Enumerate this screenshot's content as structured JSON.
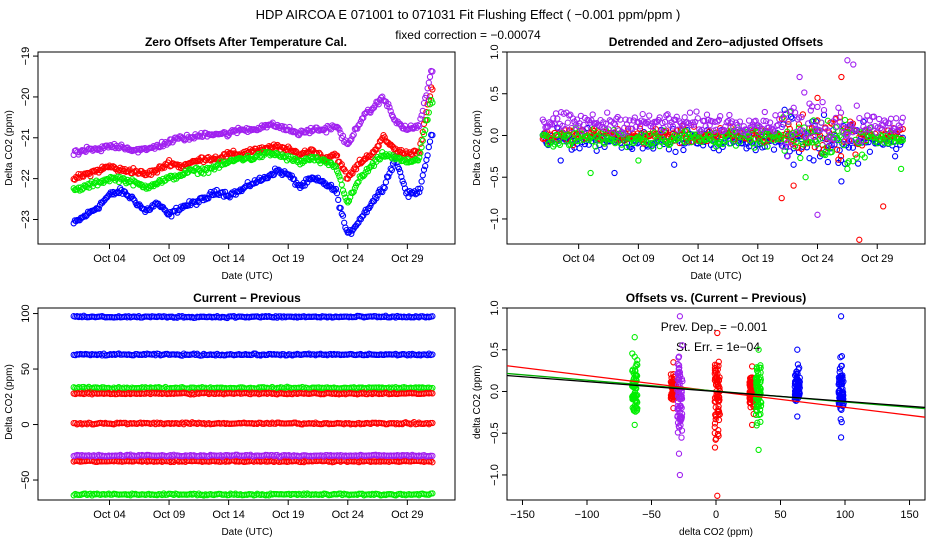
{
  "figure": {
    "title": "HDP   AIRCOA E   071001 to 071031   Fit Flushing Effect ( −0.001 ppm/ppm )",
    "subtitle": "fixed correction = −0.00074"
  },
  "colors": {
    "blue": "#0000ff",
    "red": "#ff0000",
    "green": "#00ee00",
    "purple": "#a020f0",
    "black": "#000000"
  },
  "chart_data": [
    {
      "id": "p1",
      "type": "scatter",
      "title": "Zero Offsets After Temperature Cal.",
      "xlabel": "Date (UTC)",
      "ylabel": "Delta CO2 (ppm)",
      "xlim": [
        -2,
        33
      ],
      "ylim": [
        -23.6,
        -18.9
      ],
      "x_ticks": [
        4,
        9,
        14,
        19,
        24,
        29
      ],
      "x_tick_labels": [
        "Oct 04",
        "Oct 09",
        "Oct 14",
        "Oct 19",
        "Oct 24",
        "Oct 29"
      ],
      "y_ticks": [
        -23,
        -22,
        -21,
        -20,
        -19
      ],
      "y_tick_labels": [
        "−23",
        "−22",
        "−21",
        "−20",
        "−19"
      ],
      "x_data_range": [
        1,
        31.2
      ],
      "series": [
        {
          "name": "blue",
          "color": "#0000ff",
          "x": [
            1,
            2,
            3,
            4,
            5,
            6,
            7,
            8,
            9,
            10,
            11,
            12,
            13,
            14,
            15,
            16,
            17,
            18,
            19,
            20,
            21,
            22,
            23,
            24,
            25,
            26,
            27,
            28,
            29,
            30,
            31
          ],
          "y": [
            -23.1,
            -22.9,
            -22.7,
            -22.4,
            -22.3,
            -22.5,
            -22.8,
            -22.6,
            -22.9,
            -22.7,
            -22.6,
            -22.5,
            -22.3,
            -22.4,
            -22.3,
            -22.1,
            -22.0,
            -21.8,
            -21.9,
            -22.2,
            -22.0,
            -22.1,
            -22.3,
            -23.4,
            -23.0,
            -22.6,
            -22.2,
            -21.5,
            -22.4,
            -22.3,
            -21.0
          ]
        },
        {
          "name": "red",
          "color": "#ff0000",
          "x": [
            1,
            2,
            3,
            4,
            5,
            6,
            7,
            8,
            9,
            10,
            11,
            12,
            13,
            14,
            15,
            16,
            17,
            18,
            19,
            20,
            21,
            22,
            23,
            24,
            25,
            26,
            27,
            28,
            29,
            30,
            31
          ],
          "y": [
            -22.0,
            -21.9,
            -21.8,
            -21.7,
            -21.8,
            -21.8,
            -21.9,
            -21.8,
            -21.6,
            -21.7,
            -21.6,
            -21.5,
            -21.5,
            -21.4,
            -21.4,
            -21.3,
            -21.3,
            -21.2,
            -21.3,
            -21.4,
            -21.3,
            -21.5,
            -21.4,
            -22.0,
            -21.6,
            -21.4,
            -21.0,
            -21.3,
            -21.4,
            -21.3,
            -19.8
          ]
        },
        {
          "name": "green",
          "color": "#00ee00",
          "x": [
            1,
            2,
            3,
            4,
            5,
            6,
            7,
            8,
            9,
            10,
            11,
            12,
            13,
            14,
            15,
            16,
            17,
            18,
            19,
            20,
            21,
            22,
            23,
            24,
            25,
            26,
            27,
            28,
            29,
            30,
            31
          ],
          "y": [
            -22.3,
            -22.2,
            -22.1,
            -22.0,
            -22.0,
            -22.1,
            -22.2,
            -22.1,
            -22.0,
            -21.9,
            -21.8,
            -21.8,
            -21.7,
            -21.6,
            -21.5,
            -21.5,
            -21.4,
            -21.4,
            -21.5,
            -21.6,
            -21.5,
            -21.6,
            -21.7,
            -22.6,
            -22.0,
            -21.7,
            -21.4,
            -21.5,
            -21.6,
            -21.5,
            -20.1
          ]
        },
        {
          "name": "purple",
          "color": "#a020f0",
          "x": [
            1,
            2,
            3,
            4,
            5,
            6,
            7,
            8,
            9,
            10,
            11,
            12,
            13,
            14,
            15,
            16,
            17,
            18,
            19,
            20,
            21,
            22,
            23,
            24,
            25,
            26,
            27,
            28,
            29,
            30,
            31
          ],
          "y": [
            -21.4,
            -21.3,
            -21.3,
            -21.2,
            -21.2,
            -21.3,
            -21.3,
            -21.2,
            -21.1,
            -21.0,
            -21.0,
            -20.9,
            -20.9,
            -20.9,
            -20.8,
            -20.8,
            -20.7,
            -20.7,
            -20.8,
            -20.9,
            -20.8,
            -20.8,
            -20.7,
            -21.2,
            -20.6,
            -20.3,
            -20.0,
            -20.6,
            -20.8,
            -20.7,
            -19.4
          ]
        }
      ]
    },
    {
      "id": "p2",
      "type": "scatter",
      "title": "Detrended and Zero−adjusted Offsets",
      "xlabel": "Date (UTC)",
      "ylabel": "Delta CO2 (ppm)",
      "xlim": [
        -2,
        33
      ],
      "ylim": [
        -1.3,
        1.0
      ],
      "x_ticks": [
        4,
        9,
        14,
        19,
        24,
        29
      ],
      "x_tick_labels": [
        "Oct 04",
        "Oct 09",
        "Oct 14",
        "Oct 19",
        "Oct 24",
        "Oct 29"
      ],
      "y_ticks": [
        -1.0,
        -0.5,
        0.0,
        0.5,
        1.0
      ],
      "y_tick_labels": [
        "−1.0",
        "−0.5",
        "0.0",
        "0.5",
        "1.0"
      ],
      "x_data_range": [
        1,
        31.2
      ],
      "series": [
        {
          "name": "blue",
          "color": "#0000ff",
          "center": -0.05,
          "spread": 0.1,
          "outliers": [
            [
              2.5,
              -0.3
            ],
            [
              7,
              -0.45
            ],
            [
              12,
              -0.35
            ],
            [
              22,
              -0.35
            ],
            [
              26,
              -0.55
            ],
            [
              30.5,
              -0.25
            ]
          ]
        },
        {
          "name": "red",
          "color": "#ff0000",
          "center": 0.0,
          "spread": 0.08,
          "outliers": [
            [
              21,
              -0.75
            ],
            [
              22,
              -0.6
            ],
            [
              26,
              0.7
            ],
            [
              27.5,
              -1.25
            ],
            [
              29.5,
              -0.85
            ],
            [
              24,
              0.45
            ]
          ]
        },
        {
          "name": "green",
          "color": "#00ee00",
          "center": -0.03,
          "spread": 0.09,
          "outliers": [
            [
              5,
              -0.45
            ],
            [
              9,
              -0.3
            ],
            [
              23,
              -0.5
            ],
            [
              26.5,
              -0.4
            ],
            [
              31,
              -0.4
            ]
          ]
        },
        {
          "name": "purple",
          "color": "#a020f0",
          "center": 0.15,
          "spread": 0.1,
          "outliers": [
            [
              22.5,
              0.7
            ],
            [
              24,
              -0.95
            ],
            [
              26.5,
              0.9
            ],
            [
              27,
              0.85
            ],
            [
              21.5,
              -0.25
            ]
          ]
        }
      ]
    },
    {
      "id": "p3",
      "type": "scatter",
      "title": "Current − Previous",
      "xlabel": "Date (UTC)",
      "ylabel": "Delta CO2 (ppm)",
      "xlim": [
        -2,
        33
      ],
      "ylim": [
        -68,
        105
      ],
      "x_ticks": [
        4,
        9,
        14,
        19,
        24,
        29
      ],
      "x_tick_labels": [
        "Oct 04",
        "Oct 09",
        "Oct 14",
        "Oct 19",
        "Oct 24",
        "Oct 29"
      ],
      "y_ticks": [
        -50,
        0,
        50,
        100
      ],
      "y_tick_labels": [
        "−50",
        "0",
        "50",
        "100"
      ],
      "x_data_range": [
        1,
        31.2
      ],
      "series": [
        {
          "name": "blue",
          "color": "#0000ff",
          "levels": [
            97,
            63
          ]
        },
        {
          "name": "green",
          "color": "#00ee00",
          "levels": [
            33,
            -63
          ]
        },
        {
          "name": "red",
          "color": "#ff0000",
          "levels": [
            28,
            1,
            -33
          ]
        },
        {
          "name": "purple",
          "color": "#a020f0",
          "levels": [
            -28
          ]
        }
      ]
    },
    {
      "id": "p4",
      "type": "scatter",
      "title": "Offsets vs. (Current − Previous)",
      "xlabel": "delta CO2 (ppm)",
      "ylabel": "delta CO2 (ppm)",
      "xlim": [
        -162,
        162
      ],
      "ylim": [
        -1.3,
        1.0
      ],
      "x_ticks": [
        -150,
        -100,
        -50,
        0,
        50,
        100,
        150
      ],
      "x_tick_labels": [
        "−150",
        "−100",
        "−50",
        "0",
        "50",
        "100",
        "150"
      ],
      "y_ticks": [
        -1.0,
        -0.5,
        0.0,
        0.5,
        1.0
      ],
      "y_tick_labels": [
        "−1.0",
        "−0.5",
        "0.0",
        "0.5",
        "1.0"
      ],
      "annotations": {
        "prev_dep_label": "Prev. Dep. = −0.001",
        "std_err_label": "St. Err. = 1e−04"
      },
      "clusters": [
        {
          "color": "#00ee00",
          "x": -63,
          "ymin": -0.4,
          "ymax": 0.65
        },
        {
          "color": "#ff0000",
          "x": -33,
          "ymin": -0.2,
          "ymax": 0.35
        },
        {
          "color": "#a020f0",
          "x": -28,
          "ymin": -1.0,
          "ymax": 0.9
        },
        {
          "color": "#ff0000",
          "x": 1,
          "ymin": -1.25,
          "ymax": 0.7
        },
        {
          "color": "#ff0000",
          "x": 28,
          "ymin": -0.4,
          "ymax": 0.3
        },
        {
          "color": "#00ee00",
          "x": 33,
          "ymin": -0.7,
          "ymax": 0.5
        },
        {
          "color": "#0000ff",
          "x": 63,
          "ymin": -0.3,
          "ymax": 0.5
        },
        {
          "color": "#0000ff",
          "x": 97,
          "ymin": -0.55,
          "ymax": 0.9
        }
      ],
      "fit_lines": [
        {
          "color": "#ff0000",
          "slope": -0.0019,
          "intercept": 0.0
        },
        {
          "color": "#00aa00",
          "slope": -0.0013,
          "intercept": 0.005
        },
        {
          "color": "#000000",
          "slope": -0.00118,
          "intercept": 0.0
        }
      ]
    }
  ]
}
